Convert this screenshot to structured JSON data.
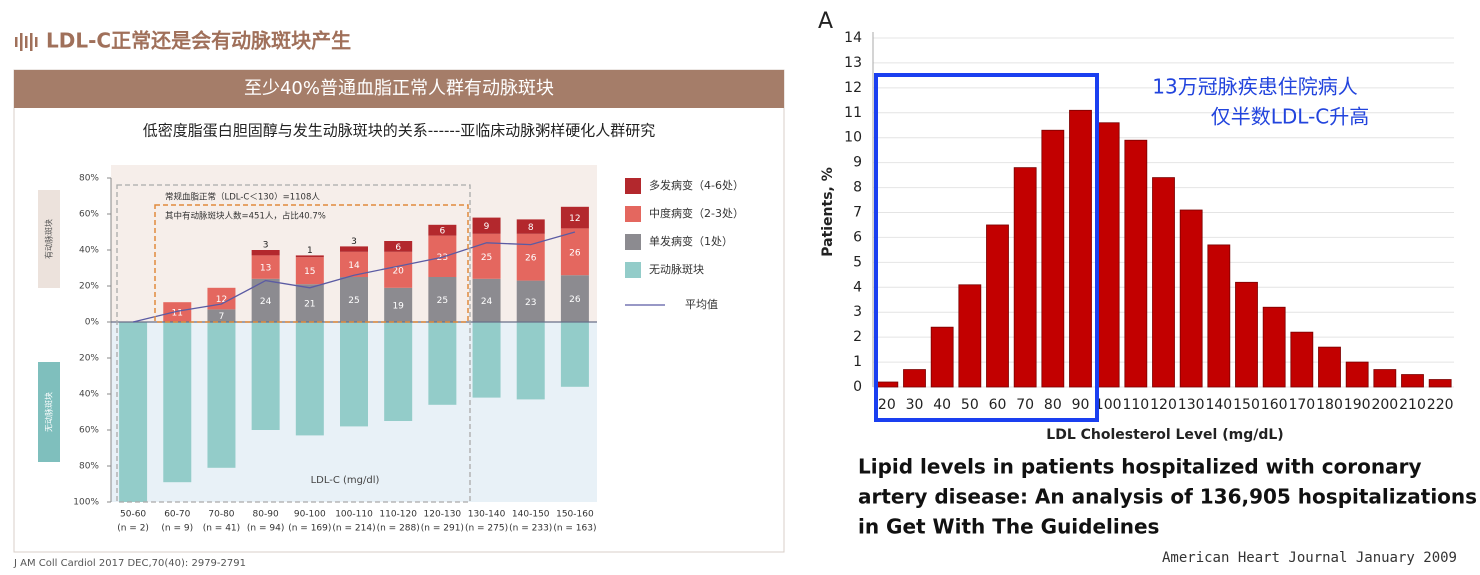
{
  "header": {
    "title": "LDL-C正常还是会有动脉斑块产生"
  },
  "banner": "至少40%普通血脂正常人群有动脉斑块",
  "citation": "J AM Coll Cardiol 2017 DEC,70(40): 2979-2791",
  "chart_data": [
    {
      "type": "bar",
      "stacked": true,
      "title": "低密度脂蛋白胆固醇与发生动脉斑块的关系------亚临床动脉粥样硬化人群研究",
      "categories": [
        "50-60",
        "60-70",
        "70-80",
        "80-90",
        "90-100",
        "100-110",
        "110-120",
        "120-130",
        "130-140",
        "140-150",
        "150-160"
      ],
      "category_notes": [
        "(n = 2)",
        "(n = 9)",
        "(n = 41)",
        "(n = 94)",
        "(n = 169)",
        "(n = 214)",
        "(n = 288)",
        "(n = 291)",
        "(n = 275)",
        "(n = 233)",
        "(n = 163)"
      ],
      "series": [
        {
          "name": "多发病变（4-6处）",
          "color": "#b3282d",
          "values": [
            0,
            0,
            0,
            3,
            1,
            3,
            6,
            6,
            9,
            8,
            12
          ]
        },
        {
          "name": "中度病变（2-3处）",
          "color": "#e4675f",
          "values": [
            0,
            11,
            12,
            13,
            15,
            14,
            20,
            23,
            25,
            26,
            26
          ]
        },
        {
          "name": "单发病变（1处）",
          "color": "#8c8b90",
          "values": [
            0,
            0,
            7,
            24,
            21,
            25,
            19,
            25,
            24,
            23,
            26
          ]
        },
        {
          "name": "无动脉斑块",
          "color": "#93ccc9",
          "values": [
            -100,
            -89,
            -81,
            -60,
            -63,
            -58,
            -55,
            -46,
            -42,
            -43,
            -36
          ]
        },
        {
          "name": "平均值",
          "type": "line",
          "color": "#5b5ba3",
          "values": [
            0,
            6,
            10,
            23,
            19,
            26,
            31,
            36,
            44,
            43,
            50
          ]
        }
      ],
      "ylim": [
        -100,
        80
      ],
      "yticks": [
        {
          "value": -100,
          "label": "100%"
        },
        {
          "value": -80,
          "label": "80%"
        },
        {
          "value": -60,
          "label": "60%"
        },
        {
          "value": -40,
          "label": "40%"
        },
        {
          "value": -20,
          "label": "20%"
        },
        {
          "value": 0,
          "label": "0%"
        },
        {
          "value": 20,
          "label": "20%"
        },
        {
          "value": 40,
          "label": "40%"
        },
        {
          "value": 60,
          "label": "60%"
        },
        {
          "value": 80,
          "label": "80%"
        }
      ],
      "annotations": [
        "常规血脂正常（LDL-C＜130）=1108人",
        "其中有动脉斑块人数=451人，占比40.7%",
        "LDL-C (mg/dl)",
        "有动脉斑块",
        "无动脉斑块"
      ],
      "legend": "right"
    },
    {
      "type": "bar",
      "panel_label": "A",
      "categories": [
        "20",
        "30",
        "40",
        "50",
        "60",
        "70",
        "80",
        "90",
        "100",
        "110",
        "120",
        "130",
        "140",
        "150",
        "160",
        "170",
        "180",
        "190",
        "200",
        "210",
        "220"
      ],
      "values": [
        0.2,
        0.7,
        2.4,
        4.1,
        6.5,
        8.8,
        10.3,
        11.1,
        10.6,
        9.9,
        8.4,
        7.1,
        5.7,
        4.2,
        3.2,
        2.2,
        1.6,
        1.0,
        0.7,
        0.5,
        0.3
      ],
      "color": "#c20000",
      "ylim": [
        0,
        14
      ],
      "yticks": [
        0,
        1,
        2,
        3,
        4,
        5,
        6,
        7,
        8,
        9,
        10,
        11,
        12,
        13,
        14
      ],
      "grid": true,
      "x_label": "LDL Cholesterol Level (mg/dL)",
      "y_label": "Patients, %",
      "annotations": [
        "13万冠脉疾患住院病人",
        "仅半数LDL-C升高"
      ],
      "caption": [
        "Lipid levels in patients hospitalized with coronary",
        "artery disease: An analysis of 136,905 hospitalizations",
        "in Get With The Guidelines"
      ],
      "source": "American Heart Journal  January 2009"
    }
  ]
}
